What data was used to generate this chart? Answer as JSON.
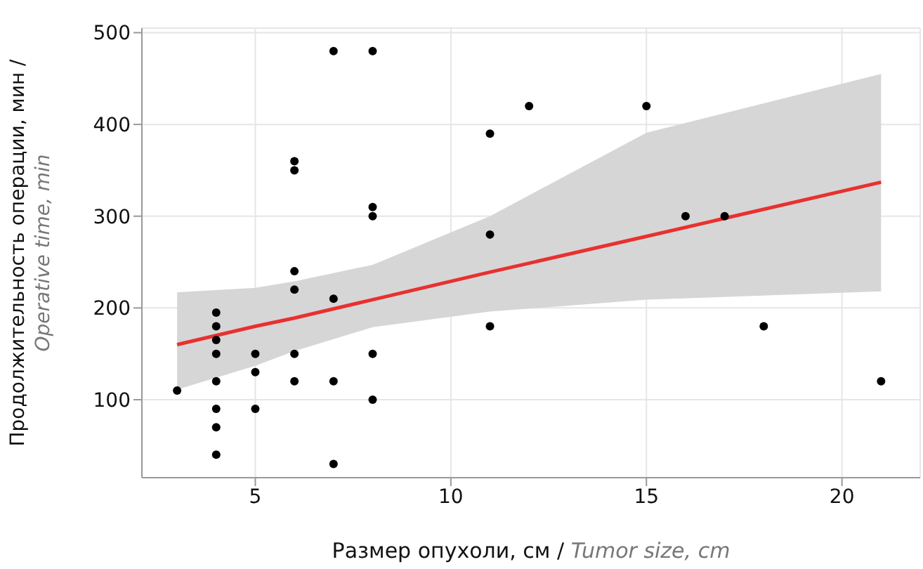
{
  "chart_data": {
    "type": "scatter",
    "xlabel": "Размер опухоли, см / Tumor size, cm",
    "ylabel": "Продолжительность операции, мин / Operative time, min",
    "xlim": [
      2.1,
      22
    ],
    "xticks": [
      5,
      10,
      15,
      20
    ],
    "ylim": [
      15,
      505
    ],
    "yticks": [
      100,
      200,
      300,
      400,
      500
    ],
    "grid": true,
    "series": [
      {
        "marker": "circle",
        "color": "#000000",
        "x": [
          3,
          4,
          4,
          4,
          4,
          4,
          4,
          4,
          4,
          5,
          5,
          5,
          6,
          6,
          6,
          6,
          6,
          6,
          7,
          7,
          7,
          7,
          8,
          8,
          8,
          8,
          8,
          11,
          11,
          11,
          12,
          15,
          16,
          17,
          18,
          21
        ],
        "values": [
          110,
          40,
          70,
          90,
          120,
          150,
          165,
          180,
          195,
          90,
          130,
          150,
          120,
          150,
          220,
          240,
          350,
          360,
          30,
          120,
          210,
          480,
          100,
          150,
          300,
          310,
          480,
          180,
          280,
          390,
          420,
          420,
          300,
          300,
          180,
          120
        ]
      },
      {
        "type": "line",
        "color": "#e8312f",
        "x": [
          3,
          5,
          6,
          8,
          11,
          15,
          21
        ],
        "values": [
          160,
          180,
          189,
          209,
          239,
          278,
          337
        ],
        "lower": [
          111,
          137,
          153,
          179,
          196,
          209,
          218
        ],
        "upper": [
          217,
          222,
          229,
          247,
          300,
          391,
          455
        ]
      }
    ]
  }
}
